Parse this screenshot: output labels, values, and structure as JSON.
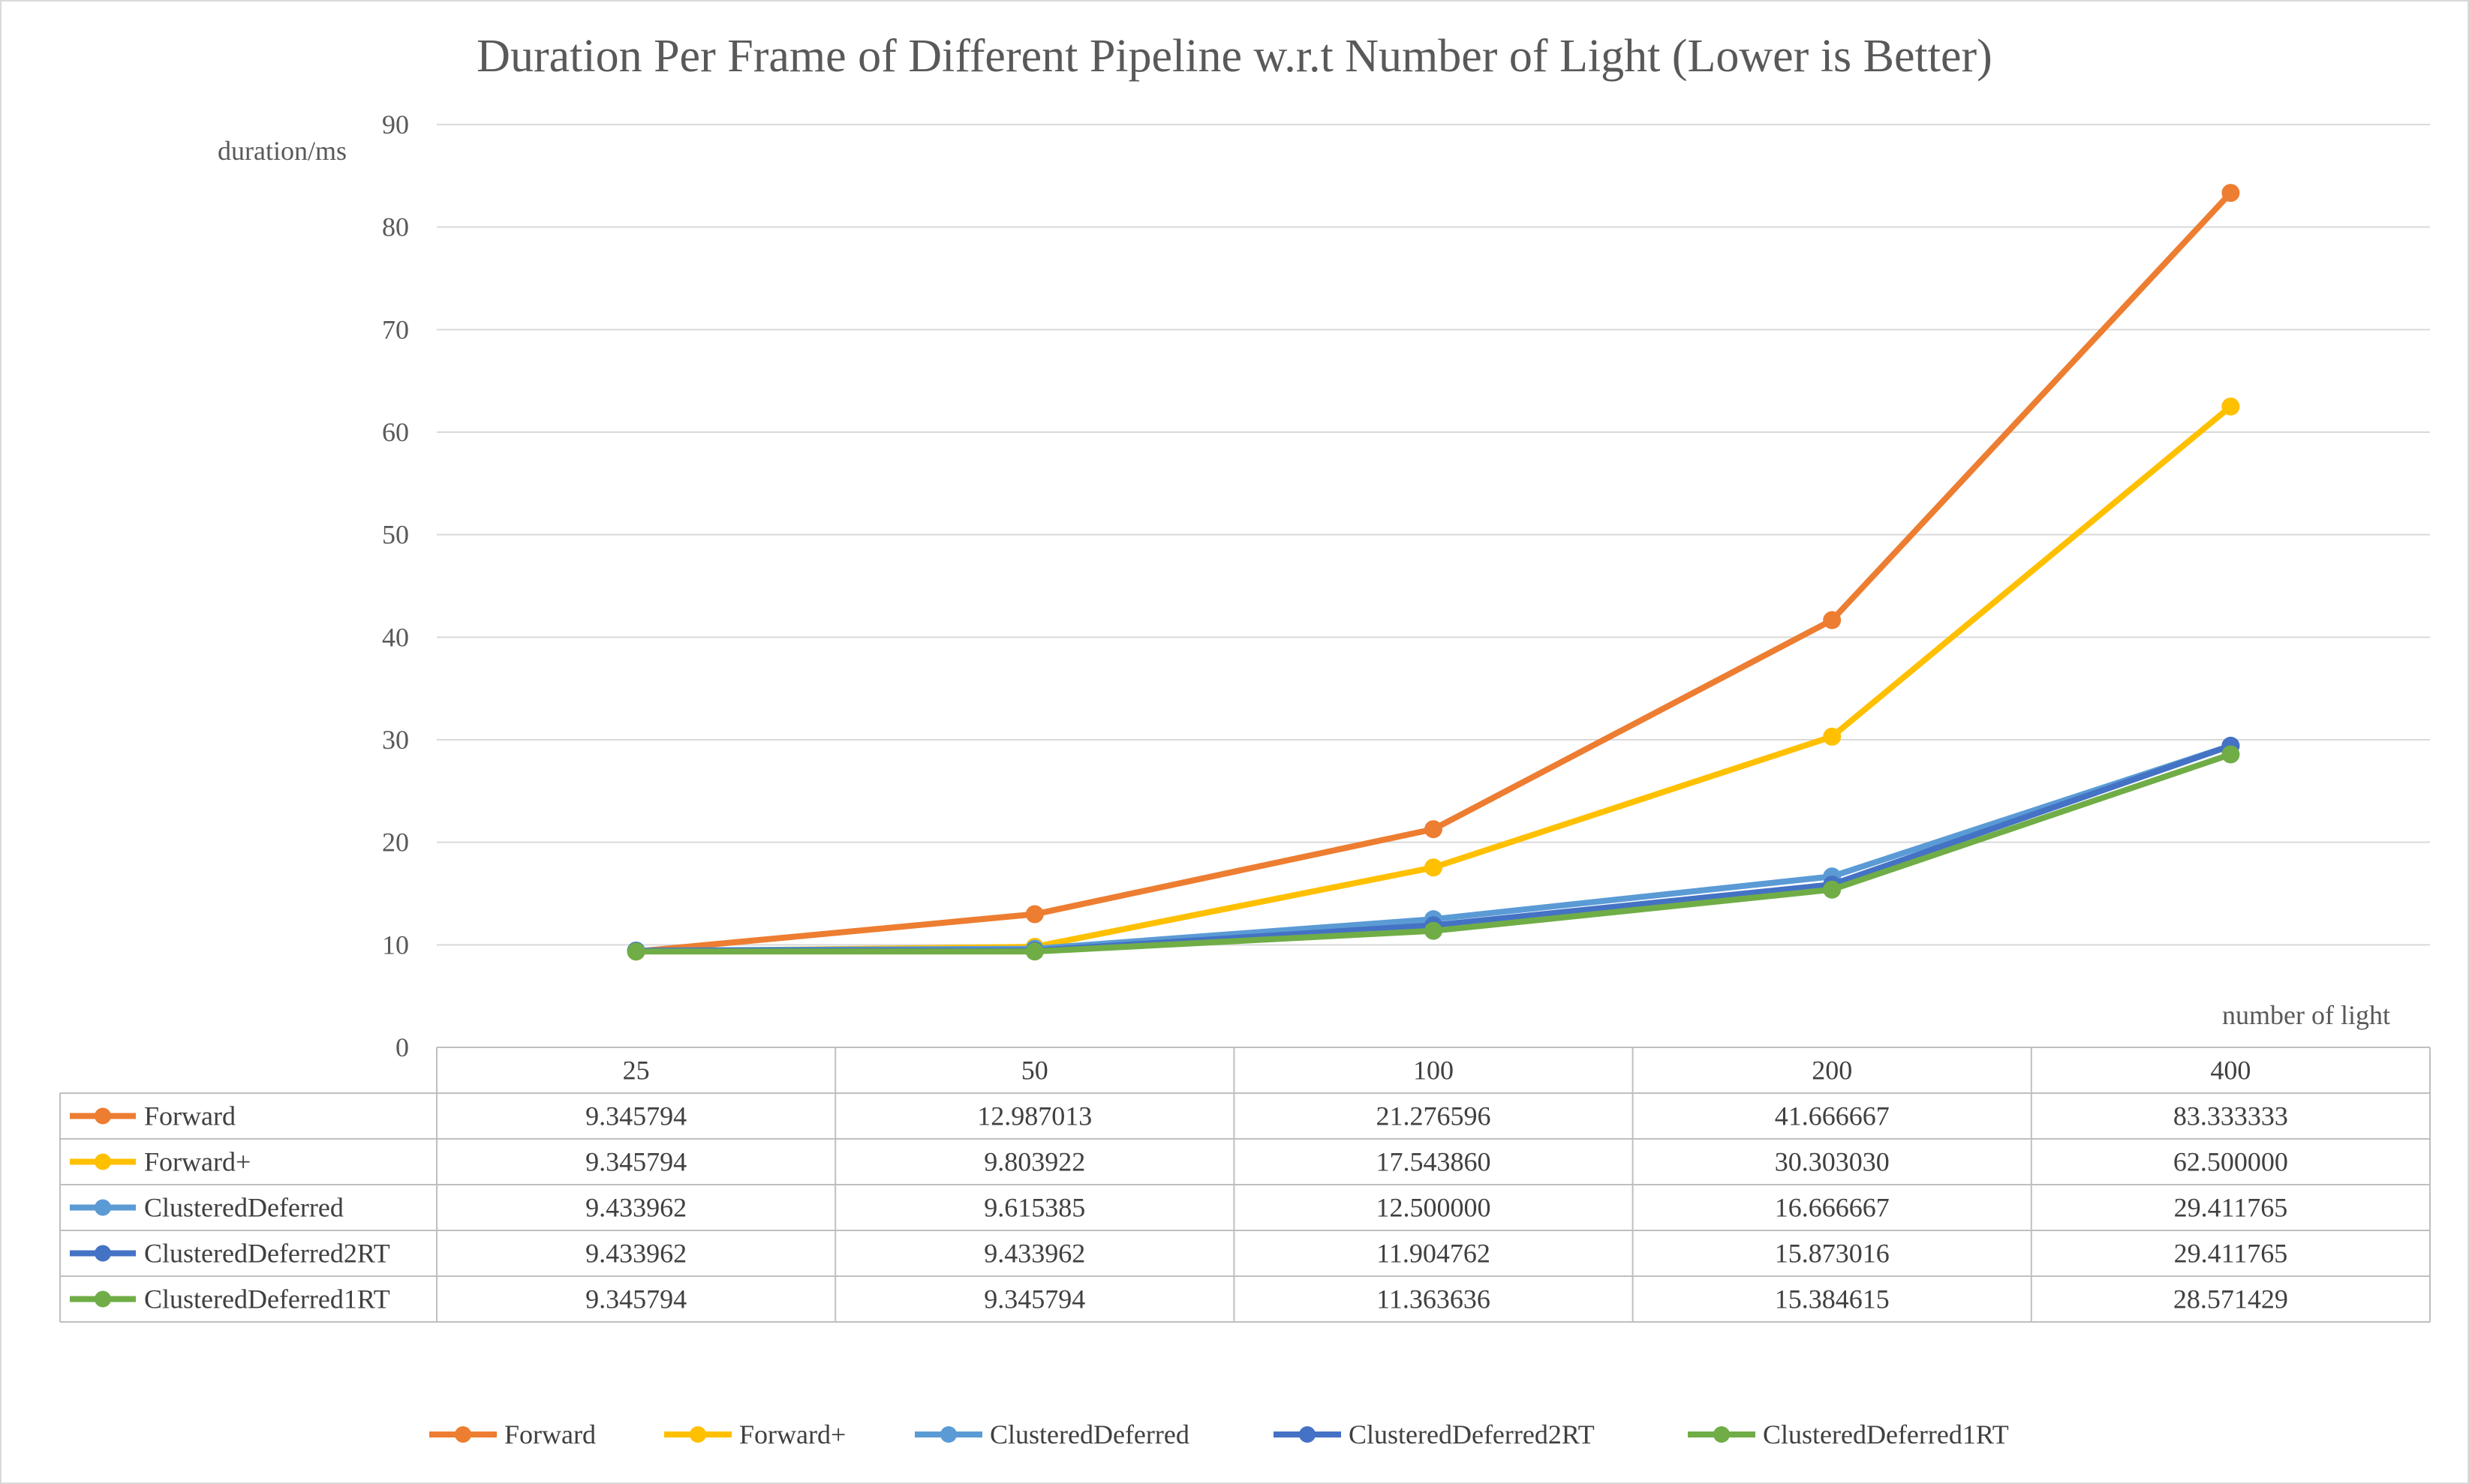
{
  "chart_data": {
    "type": "line",
    "title": "Duration Per Frame of Different Pipeline w.r.t Number of Light (Lower is Better)",
    "xlabel": "number of light",
    "ylabel": "duration/ms",
    "categories": [
      "25",
      "50",
      "100",
      "200",
      "400"
    ],
    "ylim": [
      0,
      90
    ],
    "yticks": [
      0,
      10,
      20,
      30,
      40,
      50,
      60,
      70,
      80,
      90
    ],
    "grid": "horizontal",
    "legend_position": "bottom",
    "has_data_table": true,
    "series": [
      {
        "name": "Forward",
        "color": "#ED7D31",
        "values": [
          9.345794,
          12.987013,
          21.276596,
          41.666667,
          83.333333
        ],
        "labels": [
          "9.345794",
          "12.987013",
          "21.276596",
          "41.666667",
          "83.333333"
        ]
      },
      {
        "name": "Forward+",
        "color": "#FFC000",
        "values": [
          9.345794,
          9.803922,
          17.54386,
          30.30303,
          62.5
        ],
        "labels": [
          "9.345794",
          "9.803922",
          "17.543860",
          "30.303030",
          "62.500000"
        ]
      },
      {
        "name": "ClusteredDeferred",
        "color": "#5B9BD5",
        "values": [
          9.433962,
          9.615385,
          12.5,
          16.666667,
          29.411765
        ],
        "labels": [
          "9.433962",
          "9.615385",
          "12.500000",
          "16.666667",
          "29.411765"
        ]
      },
      {
        "name": "ClusteredDeferred2RT",
        "color": "#4472C4",
        "values": [
          9.433962,
          9.433962,
          11.904762,
          15.873016,
          29.411765
        ],
        "labels": [
          "9.433962",
          "9.433962",
          "11.904762",
          "15.873016",
          "29.411765"
        ]
      },
      {
        "name": "ClusteredDeferred1RT",
        "color": "#70AD47",
        "values": [
          9.345794,
          9.345794,
          11.363636,
          15.384615,
          28.571429
        ],
        "labels": [
          "9.345794",
          "9.345794",
          "11.363636",
          "15.384615",
          "28.571429"
        ]
      }
    ]
  }
}
